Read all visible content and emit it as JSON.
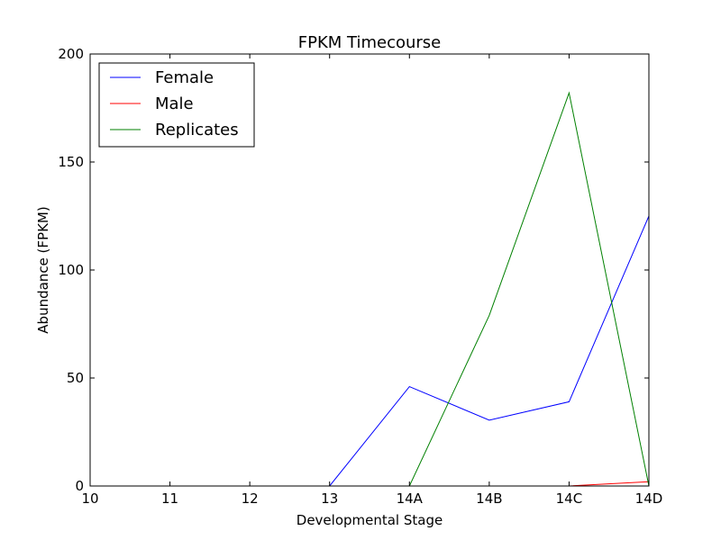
{
  "chart_data": {
    "type": "line",
    "title": "FPKM Timecourse",
    "xlabel": "Developmental Stage",
    "ylabel": "Abundance (FPKM)",
    "categories": [
      "10",
      "11",
      "12",
      "13",
      "14A",
      "14B",
      "14C",
      "14D"
    ],
    "ylim": [
      0,
      200
    ],
    "yticks": [
      0,
      50,
      100,
      150,
      200
    ],
    "grid": false,
    "legend_position": "top-left",
    "series": [
      {
        "name": "Female",
        "color": "#0000ff",
        "values": [
          0,
          0,
          0,
          0,
          46,
          30.5,
          39,
          125
        ]
      },
      {
        "name": "Male",
        "color": "#ff0000",
        "values": [
          0,
          0,
          0,
          0,
          0,
          0,
          0,
          2
        ]
      },
      {
        "name": "Replicates",
        "color": "#008000",
        "values": [
          0,
          0,
          0,
          0,
          0,
          79,
          182,
          0
        ]
      }
    ]
  }
}
